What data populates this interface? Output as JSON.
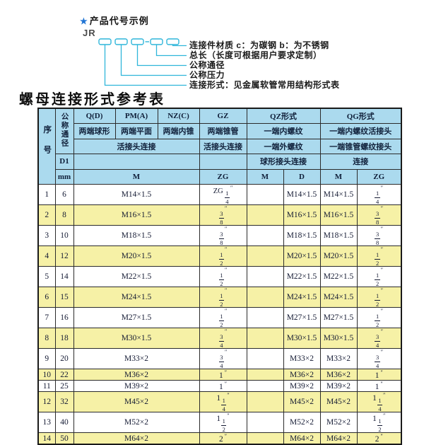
{
  "colors": {
    "header_bg": "#abdaee",
    "row_alt_bg": "#f6f1a6",
    "line_cyan": "#2fb6da",
    "star_blue": "#1f74d4",
    "border": "#2b2b2b"
  },
  "diagram": {
    "star": "★",
    "title": "产品代号示例",
    "code_prefix": "JR",
    "labels": [
      "连接件材质  c：为碳钢  b：为不锈钢",
      "总长（长度可根据用户要求定制）",
      "公称通径",
      "公称压力",
      "连接形式：见金属软管常用结构形式表"
    ]
  },
  "table": {
    "title": "螺母连接形式参考表",
    "header": {
      "xuhao": "序号",
      "dn_label": "公称通径",
      "d1": "D1",
      "mm": "mm",
      "col_q": "Q(D)",
      "col_pm": "PM(A)",
      "col_nz": "NZ(C)",
      "col_gz": "GZ",
      "col_qz": "QZ形式",
      "col_qg": "QG形式",
      "q_desc": "两端球形",
      "pm_desc": "两端平面",
      "nz_desc": "两端内锥",
      "gz_desc": "两端锥管",
      "qz_desc1": "一端内螺纹",
      "qg_desc1": "一端内螺纹活接头",
      "union_conn_a": "活接头连接",
      "union_conn_b": "活接头连接",
      "qz_desc2": "一端外螺纹",
      "qg_desc2": "一端锥管螺纹接头",
      "qz_conn": "球形接头连接",
      "qg_conn": "连接",
      "sub_m": "M",
      "sub_zg": "ZG",
      "sub_qz_m": "M",
      "sub_qz_d": "D",
      "sub_qg_m": "M",
      "sub_qg_zg": "ZG"
    },
    "rows": [
      {
        "no": "1",
        "dn": "6",
        "m": "M14×1.5",
        "gz": "ZG 1/4",
        "qz_m": "",
        "qz_d": "M14×1.5",
        "qg_m": "M14×1.5",
        "qg_zg": "1/4"
      },
      {
        "no": "2",
        "dn": "8",
        "m": "M16×1.5",
        "gz": "3/8",
        "qz_m": "",
        "qz_d": "M16×1.5",
        "qg_m": "M16×1.5",
        "qg_zg": "3/8"
      },
      {
        "no": "3",
        "dn": "10",
        "m": "M18×1.5",
        "gz": "3/8",
        "qz_m": "",
        "qz_d": "M18×1.5",
        "qg_m": "M18×1.5",
        "qg_zg": "3/8"
      },
      {
        "no": "4",
        "dn": "12",
        "m": "M20×1.5",
        "gz": "1/2",
        "qz_m": "",
        "qz_d": "M20×1.5",
        "qg_m": "M20×1.5",
        "qg_zg": "1/2"
      },
      {
        "no": "5",
        "dn": "14",
        "m": "M22×1.5",
        "gz": "1/2",
        "qz_m": "",
        "qz_d": "M22×1.5",
        "qg_m": "M22×1.5",
        "qg_zg": "1/2"
      },
      {
        "no": "6",
        "dn": "15",
        "m": "M24×1.5",
        "gz": "1/2",
        "qz_m": "",
        "qz_d": "M24×1.5",
        "qg_m": "M24×1.5",
        "qg_zg": "1/2"
      },
      {
        "no": "7",
        "dn": "16",
        "m": "M27×1.5",
        "gz": "1/2",
        "qz_m": "",
        "qz_d": "M27×1.5",
        "qg_m": "M27×1.5",
        "qg_zg": "1/2"
      },
      {
        "no": "8",
        "dn": "18",
        "m": "M30×1.5",
        "gz": "3/4",
        "qz_m": "",
        "qz_d": "M30×1.5",
        "qg_m": "M30×1.5",
        "qg_zg": "3/4"
      },
      {
        "no": "9",
        "dn": "20",
        "m": "M33×2",
        "gz": "3/4",
        "qz_m": "",
        "qz_d": "M33×2",
        "qg_m": "M33×2",
        "qg_zg": "3/4"
      },
      {
        "no": "10",
        "dn": "22",
        "m": "M36×2",
        "gz": "1",
        "qz_m": "",
        "qz_d": "M36×2",
        "qg_m": "M36×2",
        "qg_zg": "1"
      },
      {
        "no": "11",
        "dn": "25",
        "m": "M39×2",
        "gz": "1",
        "qz_m": "",
        "qz_d": "M39×2",
        "qg_m": "M39×2",
        "qg_zg": "1"
      },
      {
        "no": "12",
        "dn": "32",
        "m": "M45×2",
        "gz": "1 1/4",
        "qz_m": "",
        "qz_d": "M45×2",
        "qg_m": "M45×2",
        "qg_zg": "1 1/4"
      },
      {
        "no": "13",
        "dn": "40",
        "m": "M52×2",
        "gz": "1 1/2",
        "qz_m": "",
        "qz_d": "M52×2",
        "qg_m": "M52×2",
        "qg_zg": "1 1/2"
      },
      {
        "no": "14",
        "dn": "50",
        "m": "M64×2",
        "gz": "2",
        "qz_m": "",
        "qz_d": "M64×2",
        "qg_m": "M64×2",
        "qg_zg": "2"
      }
    ]
  }
}
